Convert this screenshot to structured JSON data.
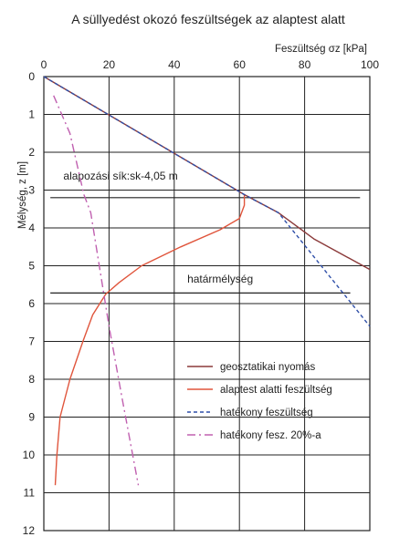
{
  "chart_data": {
    "type": "line",
    "title": "A süllyedést okozó feszültségek az alaptest alatt",
    "xlabel": "Feszültség σz [kPa]",
    "ylabel": "Mélység, z [m]",
    "xlim": [
      0,
      100
    ],
    "ylim": [
      0,
      12
    ],
    "y_inverted": true,
    "x_axis_position": "top",
    "grid": true,
    "x_ticks": [
      0,
      20,
      40,
      60,
      80,
      100
    ],
    "y_ticks": [
      0,
      1,
      2,
      3,
      4,
      5,
      6,
      7,
      8,
      9,
      10,
      11,
      12
    ],
    "legend_position": "bottom-right",
    "series": [
      {
        "name": "geosztatikai nyomás",
        "color": "#8B3A3A",
        "style": "solid",
        "x": [
          0,
          61.5,
          72,
          83,
          100
        ],
        "y": [
          0,
          3.12,
          3.6,
          4.3,
          5.1
        ]
      },
      {
        "name": "alaptest alatti feszültség",
        "color": "#E0553C",
        "style": "solid",
        "x": [
          61.5,
          61.5,
          60,
          54,
          42,
          30,
          23,
          19,
          15,
          12,
          8,
          5,
          4,
          3.5
        ],
        "y": [
          3.12,
          3.4,
          3.75,
          4.05,
          4.5,
          5.0,
          5.45,
          5.75,
          6.3,
          7.0,
          8.0,
          9.0,
          10.0,
          10.8
        ]
      },
      {
        "name": "hatékony feszültség",
        "color": "#2F4FA8",
        "style": "dashed",
        "x": [
          0,
          61.5,
          72,
          100
        ],
        "y": [
          0,
          3.12,
          3.6,
          6.6
        ]
      },
      {
        "name": "hatékony fesz. 20%-a",
        "color": "#C060B0",
        "style": "dashdot",
        "x": [
          3,
          8,
          12.3,
          14.4,
          20,
          24,
          29
        ],
        "y": [
          0.5,
          1.5,
          3.12,
          3.6,
          6.6,
          8.5,
          10.8
        ]
      }
    ],
    "annotations": [
      {
        "text": "alapozási sík:sk-4,05 m",
        "line_y": 3.2,
        "x_from": 2,
        "x_to": 97,
        "label_x": 6,
        "label_y": 2.72
      },
      {
        "text": "határmélység",
        "line_y": 5.72,
        "x_from": 2,
        "x_to": 94,
        "label_x": 44,
        "label_y": 5.45
      }
    ]
  }
}
